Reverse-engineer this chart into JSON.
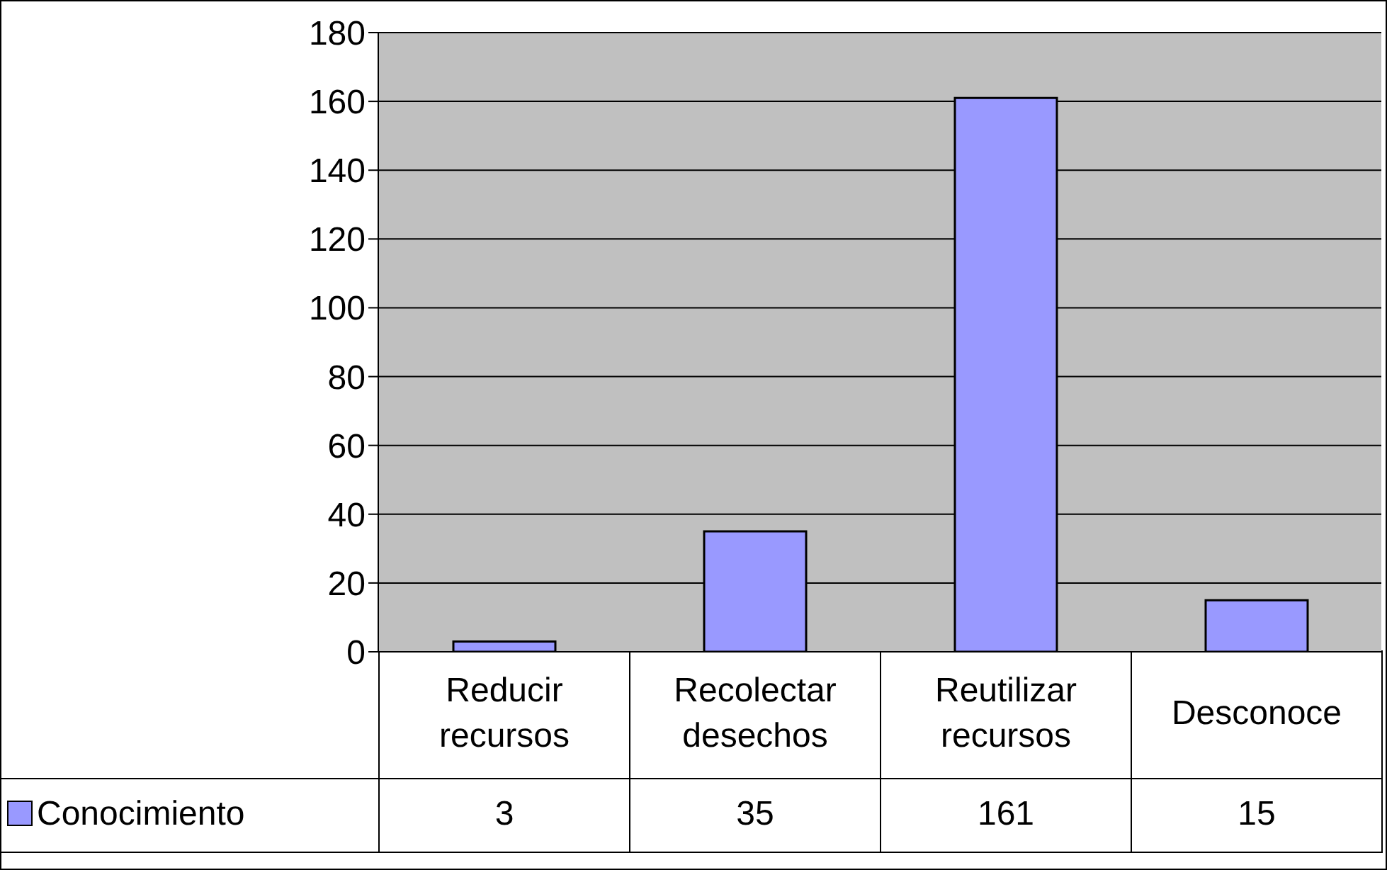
{
  "chart_data": {
    "type": "bar",
    "categories": [
      "Reducir recursos",
      "Recolectar desechos",
      "Reutilizar recursos",
      "Desconoce"
    ],
    "series": [
      {
        "name": "Conocimiento",
        "color": "#9999ff",
        "values": [
          3,
          35,
          161,
          15
        ]
      }
    ],
    "ylim": [
      0,
      180
    ],
    "yticks": [
      0,
      20,
      40,
      60,
      80,
      100,
      120,
      140,
      160,
      180
    ],
    "grid": "y",
    "legend": "bottom left",
    "data_labels": true
  }
}
